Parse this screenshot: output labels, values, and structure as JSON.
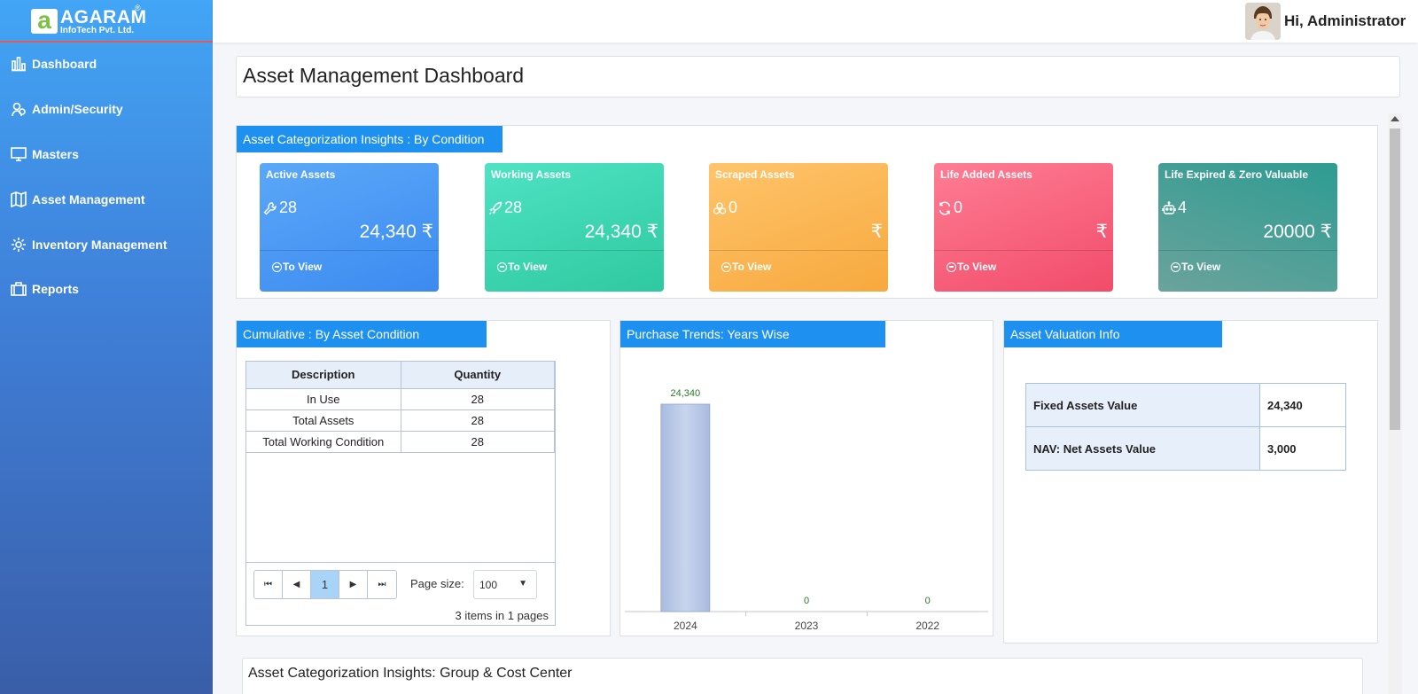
{
  "brand": {
    "name": "AGARAM",
    "sub": "InfoTech Pvt. Ltd.",
    "mark": "a",
    "reg": "®"
  },
  "sidebar": {
    "items": [
      {
        "label": "Dashboard",
        "icon": "bar-chart-icon"
      },
      {
        "label": "Admin/Security",
        "icon": "users-icon"
      },
      {
        "label": "Masters",
        "icon": "monitor-icon"
      },
      {
        "label": "Asset Management",
        "icon": "map-icon"
      },
      {
        "label": "Inventory Management",
        "icon": "gear-icon"
      },
      {
        "label": "Reports",
        "icon": "briefcase-icon"
      }
    ]
  },
  "header": {
    "greeting": "Hi, Administrator"
  },
  "page_title": "Asset Management Dashboard",
  "condition_panel": {
    "title": "Asset Categorization Insights : By Condition",
    "cards": [
      {
        "title": "Active Assets",
        "count": "28",
        "value": "24,340 ₹",
        "link": "To View",
        "icon": "wrench-icon",
        "color_from": "#5aa8f8",
        "color_to": "#3c8af0"
      },
      {
        "title": "Working Assets",
        "count": "28",
        "value": "24,340 ₹",
        "link": "To View",
        "icon": "rocket-icon",
        "color_from": "#4ee3c4",
        "color_to": "#2fc9a0"
      },
      {
        "title": "Scraped Assets",
        "count": "0",
        "value": "₹",
        "link": "To View",
        "icon": "biohazard-icon",
        "color_from": "#ffc46b",
        "color_to": "#f7a93e"
      },
      {
        "title": "Life Added Assets",
        "count": "0",
        "value": "₹",
        "link": "To View",
        "icon": "refresh-icon",
        "color_from": "#ff7d93",
        "color_to": "#f14c6a"
      },
      {
        "title": "Life Expired & Zero Valuable",
        "count": "4",
        "value": "20000 ₹",
        "link": "To View",
        "icon": "robot-icon",
        "color_from": "#2e9c92",
        "color_to": "#6aa39c"
      }
    ]
  },
  "cumulative_panel": {
    "title": "Cumulative : By Asset Condition",
    "columns": [
      "Description",
      "Quantity"
    ],
    "rows": [
      {
        "description": "In Use",
        "quantity": "28"
      },
      {
        "description": "Total Assets",
        "quantity": "28"
      },
      {
        "description": "Total Working Condition",
        "quantity": "28"
      }
    ],
    "pager": {
      "current_page": "1",
      "page_size_label": "Page size:",
      "page_size": "100",
      "info": "3 items in 1 pages"
    }
  },
  "trends_panel": {
    "title": "Purchase Trends: Years Wise"
  },
  "chart_data": {
    "type": "bar",
    "categories": [
      "2024",
      "2023",
      "2022"
    ],
    "values": [
      24340,
      0,
      0
    ],
    "data_labels": [
      "24,340",
      "0",
      "0"
    ],
    "title": "Purchase Trends: Years Wise",
    "grid": false
  },
  "valuation_panel": {
    "title": "Asset Valuation Info",
    "rows": [
      {
        "label": "Fixed Assets Value",
        "value": "24,340"
      },
      {
        "label": "NAV: Net Assets Value",
        "value": "3,000"
      }
    ]
  },
  "group_section": {
    "title": "Asset Categorization Insights: Group & Cost Center"
  }
}
